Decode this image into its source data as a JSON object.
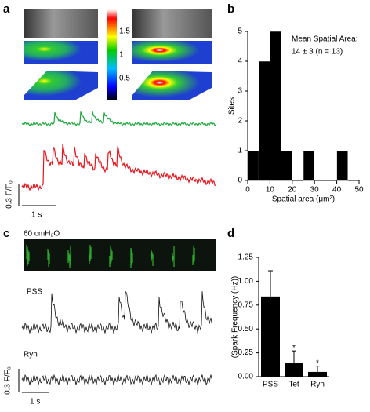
{
  "panels": {
    "a": "a",
    "b": "b",
    "c": "c",
    "d": "d"
  },
  "panel_a": {
    "colorbar_ticks": [
      "1.5",
      "1",
      "0.5"
    ],
    "scale_y": "0.3 F/F₀",
    "scale_x": "1 s"
  },
  "panel_c": {
    "condition": "60 cmH₂O",
    "trace_labels": [
      "PSS",
      "Ryn"
    ],
    "scale_y": "0.3 F/F₀",
    "scale_x": "1 s"
  },
  "chart_data": [
    {
      "type": "histogram",
      "bins": [
        0,
        5,
        10,
        15,
        20,
        25,
        30,
        35,
        40,
        45
      ],
      "counts": [
        1,
        4,
        5,
        1,
        0,
        1,
        0,
        0,
        1
      ],
      "color": "#000000",
      "xlim": [
        0,
        50
      ],
      "xticks": [
        0,
        10,
        20,
        30,
        40,
        50
      ],
      "ylim": [
        0,
        5
      ],
      "yticks": [
        0,
        1,
        2,
        3,
        4,
        5
      ],
      "xlabel": "Spatial area (μm²)",
      "ylabel": "Sites",
      "annotation": [
        "Mean Spatial Area:",
        "14 ± 3 (n = 13)"
      ]
    },
    {
      "type": "bar",
      "categories": [
        "PSS",
        "Tet",
        "Ryn"
      ],
      "values": [
        0.84,
        0.14,
        0.05
      ],
      "errors": [
        0.27,
        0.13,
        0.06
      ],
      "significance": [
        null,
        "*",
        "*"
      ],
      "color": "#000000",
      "ylim": [
        0,
        1.25
      ],
      "yticks": [
        {
          "value": 0,
          "label": "0.00"
        },
        {
          "value": 0.25,
          "label": "0.25"
        },
        {
          "value": 0.5,
          "label": "0.50"
        },
        {
          "value": 0.75,
          "label": "0.75"
        },
        {
          "value": 1,
          "label": "1.00"
        },
        {
          "value": 1.25,
          "label": "1.25"
        }
      ],
      "ylabel": "(Spark Frequency (Hz))"
    }
  ]
}
